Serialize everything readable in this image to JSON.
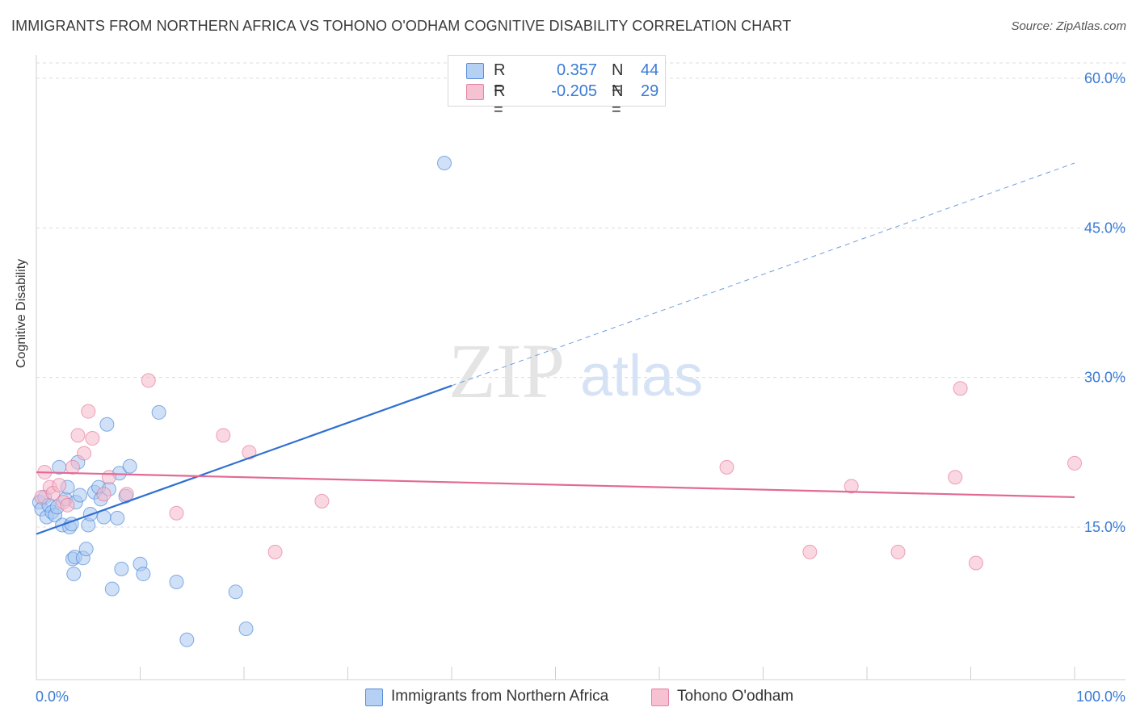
{
  "title": "IMMIGRANTS FROM NORTHERN AFRICA VS TOHONO O'ODHAM COGNITIVE DISABILITY CORRELATION CHART",
  "source": "Source: ZipAtlas.com",
  "watermark": {
    "zip": "ZIP",
    "atlas": "atlas"
  },
  "legend": {
    "rows": [
      {
        "r_label": "R =",
        "r_value": "0.357",
        "n_label": "N =",
        "n_value": "44",
        "color": "#a9c8f0"
      },
      {
        "r_label": "R =",
        "r_value": "-0.205",
        "n_label": "N =",
        "n_value": "29",
        "color": "#f5b8cb"
      }
    ]
  },
  "chart_data": {
    "type": "scatter",
    "title": "IMMIGRANTS FROM NORTHERN AFRICA VS TOHONO O'ODHAM COGNITIVE DISABILITY CORRELATION CHART",
    "xlabel": "",
    "ylabel": "Cognitive Disability",
    "xlim": [
      0,
      100
    ],
    "ylim": [
      0,
      62
    ],
    "x_tick_labels": [
      "0.0%",
      "100.0%"
    ],
    "y_ticks": [
      15,
      30,
      45,
      60
    ],
    "y_tick_labels": [
      "15.0%",
      "30.0%",
      "45.0%",
      "60.0%"
    ],
    "grid": "horizontal dashed",
    "legend_position": "top-center",
    "series": [
      {
        "name": "Immigrants from Northern Africa",
        "color": "#3a7bd5",
        "fill": "#a9c8f0",
        "points": [
          [
            0.3,
            17.5
          ],
          [
            0.5,
            16.8
          ],
          [
            0.8,
            18.0
          ],
          [
            1.0,
            16.0
          ],
          [
            1.2,
            17.2
          ],
          [
            1.5,
            16.5
          ],
          [
            1.8,
            16.2
          ],
          [
            2.0,
            17.0
          ],
          [
            2.2,
            21.0
          ],
          [
            2.5,
            15.2
          ],
          [
            2.8,
            17.8
          ],
          [
            3.0,
            19.0
          ],
          [
            3.2,
            15.0
          ],
          [
            3.4,
            15.3
          ],
          [
            3.5,
            11.8
          ],
          [
            3.6,
            10.3
          ],
          [
            3.7,
            12.0
          ],
          [
            3.8,
            17.5
          ],
          [
            4.0,
            21.5
          ],
          [
            4.2,
            18.2
          ],
          [
            4.5,
            11.9
          ],
          [
            4.8,
            12.8
          ],
          [
            5.0,
            15.2
          ],
          [
            5.2,
            16.3
          ],
          [
            5.6,
            18.5
          ],
          [
            6.0,
            19.0
          ],
          [
            6.2,
            17.8
          ],
          [
            6.5,
            16.0
          ],
          [
            6.8,
            25.3
          ],
          [
            7.0,
            18.8
          ],
          [
            7.3,
            8.8
          ],
          [
            7.8,
            15.9
          ],
          [
            8.0,
            20.4
          ],
          [
            8.2,
            10.8
          ],
          [
            8.6,
            18.1
          ],
          [
            9.0,
            21.1
          ],
          [
            10.0,
            11.3
          ],
          [
            10.3,
            10.3
          ],
          [
            11.8,
            26.5
          ],
          [
            13.5,
            9.5
          ],
          [
            14.5,
            3.7
          ],
          [
            19.2,
            8.5
          ],
          [
            20.2,
            4.8
          ],
          [
            39.3,
            51.5
          ]
        ]
      },
      {
        "name": "Tohono O'odham",
        "color": "#e26a95",
        "fill": "#f5b8cb",
        "points": [
          [
            0.5,
            18.0
          ],
          [
            0.8,
            20.5
          ],
          [
            1.3,
            19.0
          ],
          [
            1.6,
            18.4
          ],
          [
            2.2,
            19.2
          ],
          [
            2.6,
            17.5
          ],
          [
            3.0,
            17.2
          ],
          [
            3.5,
            21.0
          ],
          [
            4.0,
            24.2
          ],
          [
            4.6,
            22.4
          ],
          [
            5.0,
            26.6
          ],
          [
            5.4,
            23.9
          ],
          [
            6.5,
            18.3
          ],
          [
            7.0,
            20.0
          ],
          [
            8.7,
            18.3
          ],
          [
            10.8,
            29.7
          ],
          [
            13.5,
            16.4
          ],
          [
            18.0,
            24.2
          ],
          [
            20.5,
            22.5
          ],
          [
            23.0,
            12.5
          ],
          [
            27.5,
            17.6
          ],
          [
            66.5,
            21.0
          ],
          [
            74.5,
            12.5
          ],
          [
            78.5,
            19.1
          ],
          [
            83.0,
            12.5
          ],
          [
            88.5,
            20.0
          ],
          [
            89.0,
            28.9
          ],
          [
            90.5,
            11.4
          ],
          [
            100.0,
            21.4
          ]
        ]
      }
    ],
    "trendlines": [
      {
        "series": "Immigrants from Northern Africa",
        "x_start": 0,
        "y_start": 14.3,
        "x_solid_end": 40,
        "x_end": 100,
        "y_end": 51.5
      },
      {
        "series": "Tohono O'odham",
        "x_start": 0,
        "y_start": 20.5,
        "x_end": 100,
        "y_end": 18.0
      }
    ]
  }
}
